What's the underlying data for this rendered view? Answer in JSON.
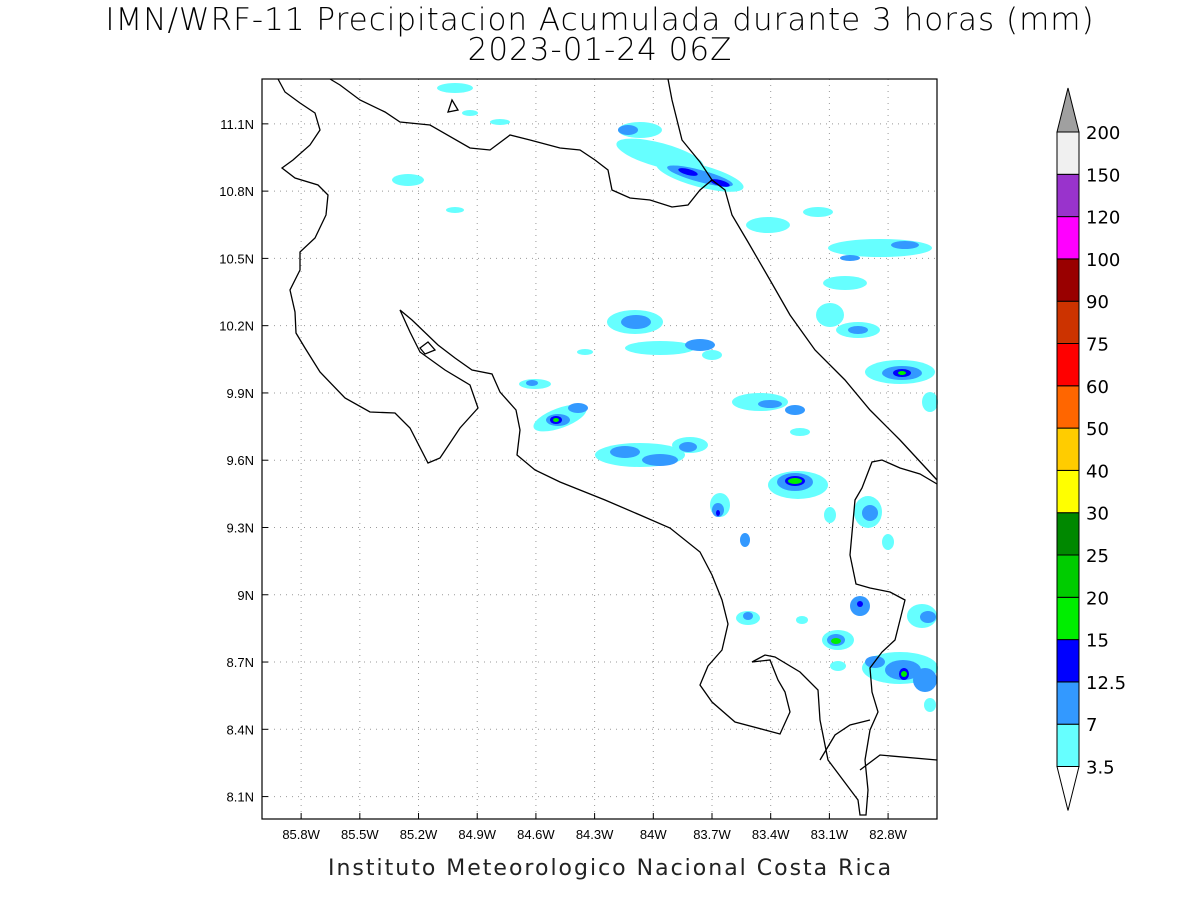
{
  "title": {
    "line1": "IMN/WRF-11 Precipitacion Acumulada durante 3 horas (mm)",
    "line2": "2023-01-24 06Z"
  },
  "footer": "Instituto Meteorologico Nacional Costa Rica",
  "map": {
    "lon_range": [
      -86.0,
      -82.55
    ],
    "lat_range": [
      8.0,
      11.3
    ],
    "lon_labels": [
      "85.8W",
      "85.5W",
      "85.2W",
      "84.9W",
      "84.6W",
      "84.3W",
      "84W",
      "83.7W",
      "83.4W",
      "83.1W",
      "82.8W"
    ],
    "lat_labels": [
      "8.1N",
      "8.4N",
      "8.7N",
      "9N",
      "9.3N",
      "9.6N",
      "9.9N",
      "10.2N",
      "10.5N",
      "10.8N",
      "11.1N"
    ],
    "grid": "dotted"
  },
  "colorbar": {
    "labels": [
      "3.5",
      "7",
      "12.5",
      "15",
      "20",
      "25",
      "30",
      "40",
      "50",
      "60",
      "75",
      "90",
      "100",
      "120",
      "150",
      "200"
    ],
    "colors": [
      "#66ffff",
      "#3399ff",
      "#0000ff",
      "#00ee00",
      "#00cc00",
      "#008800",
      "#ffff00",
      "#ffcc00",
      "#ff6600",
      "#ff0000",
      "#cc3300",
      "#990000",
      "#ff00ff",
      "#9933cc",
      "#f0f0f0",
      "#a0a0a0"
    ]
  }
}
